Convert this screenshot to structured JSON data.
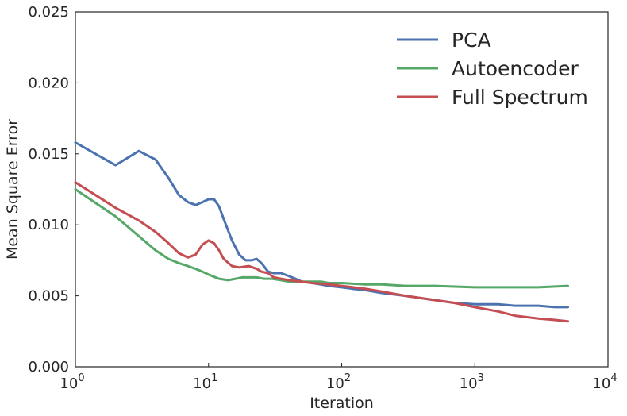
{
  "chart_data": {
    "type": "line",
    "title": "",
    "xlabel": "Iteration",
    "ylabel": "Mean Square Error",
    "xscale": "log",
    "xlim": [
      1,
      10000
    ],
    "ylim": [
      0,
      0.025
    ],
    "grid": false,
    "legend_position": "top-right",
    "x_ticks": [
      {
        "value": 1,
        "base": "10",
        "exp": "0"
      },
      {
        "value": 10,
        "base": "10",
        "exp": "1"
      },
      {
        "value": 100,
        "base": "10",
        "exp": "2"
      },
      {
        "value": 1000,
        "base": "10",
        "exp": "3"
      },
      {
        "value": 10000,
        "base": "10",
        "exp": "4"
      }
    ],
    "y_ticks": [
      {
        "value": 0,
        "label": "0.000"
      },
      {
        "value": 0.005,
        "label": "0.005"
      },
      {
        "value": 0.01,
        "label": "0.010"
      },
      {
        "value": 0.015,
        "label": "0.015"
      },
      {
        "value": 0.02,
        "label": "0.020"
      },
      {
        "value": 0.025,
        "label": "0.025"
      }
    ],
    "series": [
      {
        "name": "PCA",
        "color": "#4c72b0",
        "x": [
          1,
          2,
          3,
          4,
          5,
          6,
          7,
          8,
          9,
          10,
          11,
          12,
          13,
          15,
          17,
          19,
          21,
          23,
          25,
          28,
          31,
          35,
          40,
          45,
          50,
          60,
          70,
          80,
          100,
          120,
          150,
          200,
          300,
          500,
          700,
          1000,
          1500,
          2000,
          3000,
          4000,
          5000
        ],
        "y": [
          0.0158,
          0.0142,
          0.0152,
          0.0146,
          0.0133,
          0.0121,
          0.0116,
          0.0114,
          0.0116,
          0.0118,
          0.0118,
          0.0113,
          0.0104,
          0.0089,
          0.0079,
          0.0075,
          0.0075,
          0.0076,
          0.0073,
          0.0067,
          0.0066,
          0.0066,
          0.0064,
          0.0062,
          0.006,
          0.0059,
          0.0058,
          0.0057,
          0.0056,
          0.0055,
          0.0054,
          0.0052,
          0.005,
          0.0047,
          0.0045,
          0.0044,
          0.0044,
          0.0043,
          0.0043,
          0.0042,
          0.0042
        ]
      },
      {
        "name": "Autoencoder",
        "color": "#55a868",
        "x": [
          1,
          2,
          3,
          4,
          5,
          6,
          7,
          8,
          9,
          10,
          12,
          14,
          16,
          18,
          20,
          23,
          26,
          30,
          35,
          40,
          50,
          60,
          70,
          80,
          100,
          150,
          200,
          300,
          500,
          1000,
          2000,
          3000,
          5000
        ],
        "y": [
          0.0125,
          0.0106,
          0.0092,
          0.0082,
          0.0076,
          0.0073,
          0.0071,
          0.0069,
          0.0067,
          0.0065,
          0.0062,
          0.0061,
          0.0062,
          0.0063,
          0.0063,
          0.0063,
          0.0062,
          0.0062,
          0.0061,
          0.006,
          0.006,
          0.006,
          0.006,
          0.0059,
          0.0059,
          0.0058,
          0.0058,
          0.0057,
          0.0057,
          0.0056,
          0.0056,
          0.0056,
          0.0057
        ]
      },
      {
        "name": "Full Spectrum",
        "color": "#c44e52",
        "x": [
          1,
          2,
          3,
          4,
          5,
          6,
          7,
          8,
          9,
          10,
          11,
          12,
          13,
          15,
          17,
          20,
          23,
          25,
          28,
          31,
          35,
          40,
          50,
          60,
          80,
          100,
          150,
          200,
          300,
          500,
          700,
          1000,
          1500,
          2000,
          3000,
          4000,
          5000
        ],
        "y": [
          0.013,
          0.0112,
          0.0103,
          0.0095,
          0.0087,
          0.008,
          0.0077,
          0.0079,
          0.0086,
          0.0089,
          0.0087,
          0.0082,
          0.0076,
          0.0071,
          0.007,
          0.0071,
          0.0069,
          0.0067,
          0.0066,
          0.0063,
          0.0062,
          0.0061,
          0.006,
          0.0059,
          0.0058,
          0.0057,
          0.0055,
          0.0053,
          0.005,
          0.0047,
          0.0045,
          0.0042,
          0.0039,
          0.0036,
          0.0034,
          0.0033,
          0.0032
        ]
      }
    ]
  }
}
